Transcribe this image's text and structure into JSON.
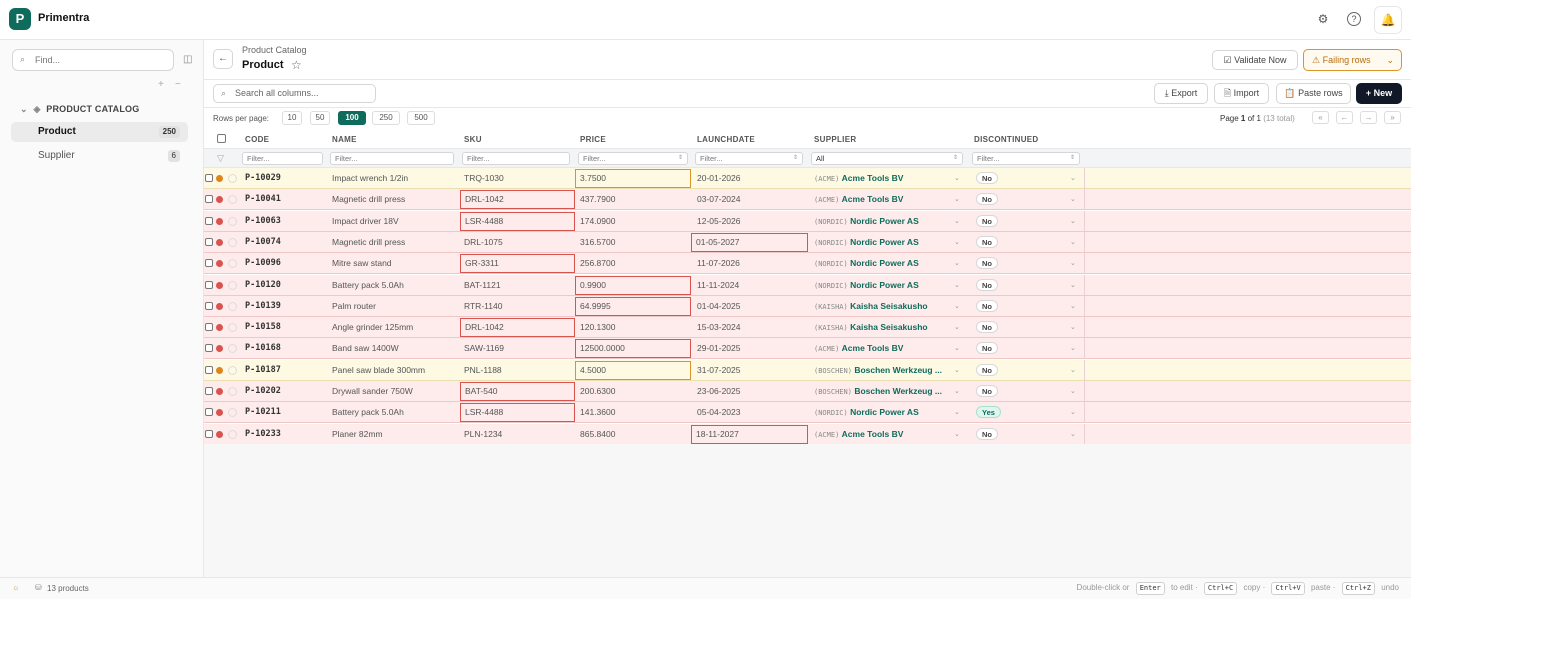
{
  "app": {
    "name": "Primentra",
    "logo_letter": "P"
  },
  "topbar": {
    "settings_icon": "gear-icon",
    "help_icon": "help-circle-icon",
    "bell_icon": "bell-icon"
  },
  "sidebar": {
    "find_placeholder": "Find...",
    "group_label": "PRODUCT CATALOG",
    "items": [
      {
        "label": "Product",
        "count": "250",
        "active": true
      },
      {
        "label": "Supplier",
        "count": "6",
        "active": false
      }
    ]
  },
  "header": {
    "breadcrumb": "Product Catalog",
    "title": "Product",
    "validate_label": "Validate Now",
    "failing_label": "Failing rows"
  },
  "toolbar": {
    "search_placeholder": "Search all columns...",
    "export_label": "Export",
    "import_label": "Import",
    "paste_label": "Paste rows",
    "new_label": "+ New"
  },
  "paging": {
    "rows_per_page_label": "Rows per page:",
    "options": [
      "10",
      "50",
      "100",
      "250",
      "500"
    ],
    "selected": "100",
    "page_prefix": "Page",
    "page_current": "1",
    "page_of": "of 1",
    "total": "(13 total)"
  },
  "grid": {
    "columns": [
      "CODE",
      "NAME",
      "SKU",
      "PRICE",
      "LAUNCHDATE",
      "SUPPLIER",
      "DISCONTINUED"
    ],
    "filter_placeholder": "Filter...",
    "supplier_filter": "All",
    "rows": [
      {
        "status": "warn",
        "code": "P-10029",
        "name": "Impact wrench 1/2in",
        "sku": "TRQ-1030",
        "price": "3.7500",
        "launch": "20-01-2026",
        "stag": "(ACME)",
        "supplier": "Acme Tools BV",
        "disc": "No"
      },
      {
        "status": "error",
        "code": "P-10041",
        "name": "Magnetic drill press",
        "sku": "DRL-1042",
        "price": "437.7900",
        "launch": "03-07-2024",
        "stag": "(ACME)",
        "supplier": "Acme Tools BV",
        "disc": "No"
      },
      {
        "status": "error",
        "code": "P-10063",
        "name": "Impact driver 18V",
        "sku": "LSR-4488",
        "price": "174.0900",
        "launch": "12-05-2026",
        "stag": "(NORDIC)",
        "supplier": "Nordic Power AS",
        "disc": "No"
      },
      {
        "status": "error",
        "code": "P-10074",
        "name": "Magnetic drill press",
        "sku": "DRL-1075",
        "price": "316.5700",
        "launch": "01-05-2027",
        "stag": "(NORDIC)",
        "supplier": "Nordic Power AS",
        "disc": "No"
      },
      {
        "status": "error",
        "code": "P-10096",
        "name": "Mitre saw stand",
        "sku": "GR-3311",
        "price": "256.8700",
        "launch": "11-07-2026",
        "stag": "(NORDIC)",
        "supplier": "Nordic Power AS",
        "disc": "No"
      },
      {
        "status": "error",
        "code": "P-10120",
        "name": "Battery pack 5.0Ah",
        "sku": "BAT-1121",
        "price": "0.9900",
        "launch": "11-11-2024",
        "stag": "(NORDIC)",
        "supplier": "Nordic Power AS",
        "disc": "No"
      },
      {
        "status": "error",
        "code": "P-10139",
        "name": "Palm router",
        "sku": "RTR-1140",
        "price": "64.9995",
        "launch": "01-04-2025",
        "stag": "(KAISHA)",
        "supplier": "Kaisha Seisakusho",
        "disc": "No"
      },
      {
        "status": "error",
        "code": "P-10158",
        "name": "Angle grinder 125mm",
        "sku": "DRL-1042",
        "price": "120.1300",
        "launch": "15-03-2024",
        "stag": "(KAISHA)",
        "supplier": "Kaisha Seisakusho",
        "disc": "No"
      },
      {
        "status": "error",
        "code": "P-10168",
        "name": "Band saw 1400W",
        "sku": "SAW-1169",
        "price": "12500.0000",
        "launch": "29-01-2025",
        "stag": "(ACME)",
        "supplier": "Acme Tools BV",
        "disc": "No"
      },
      {
        "status": "warn",
        "code": "P-10187",
        "name": "Panel saw blade 300mm",
        "sku": "PNL-1188",
        "price": "4.5000",
        "launch": "31-07-2025",
        "stag": "(BOSCHEN)",
        "supplier": "Boschen Werkzeug ...",
        "disc": "No"
      },
      {
        "status": "error",
        "code": "P-10202",
        "name": "Drywall sander 750W",
        "sku": "BAT-540",
        "price": "200.6300",
        "launch": "23-06-2025",
        "stag": "(BOSCHEN)",
        "supplier": "Boschen Werkzeug ...",
        "disc": "No"
      },
      {
        "status": "error",
        "code": "P-10211",
        "name": "Battery pack 5.0Ah",
        "sku": "LSR-4488",
        "price": "141.3600",
        "launch": "05-04-2023",
        "stag": "(NORDIC)",
        "supplier": "Nordic Power AS",
        "disc": "Yes"
      },
      {
        "status": "error",
        "code": "P-10233",
        "name": "Planer 82mm",
        "sku": "PLN-1234",
        "price": "865.8400",
        "launch": "18-11-2027",
        "stag": "(ACME)",
        "supplier": "Acme Tools BV",
        "disc": "No"
      }
    ]
  },
  "statusbar": {
    "count_label": "13 products",
    "hint_double": "Double-click or",
    "key_enter": "Enter",
    "hint_edit": "to edit",
    "key_copy": "Ctrl+C",
    "hint_copy": "copy",
    "key_paste": "Ctrl+V",
    "hint_paste": "paste",
    "key_undo": "Ctrl+Z",
    "hint_undo": "undo"
  },
  "colors": {
    "accent": "#0f6b5c",
    "error": "#d9534f",
    "warning": "#d9952a",
    "new_button": "#111827"
  }
}
